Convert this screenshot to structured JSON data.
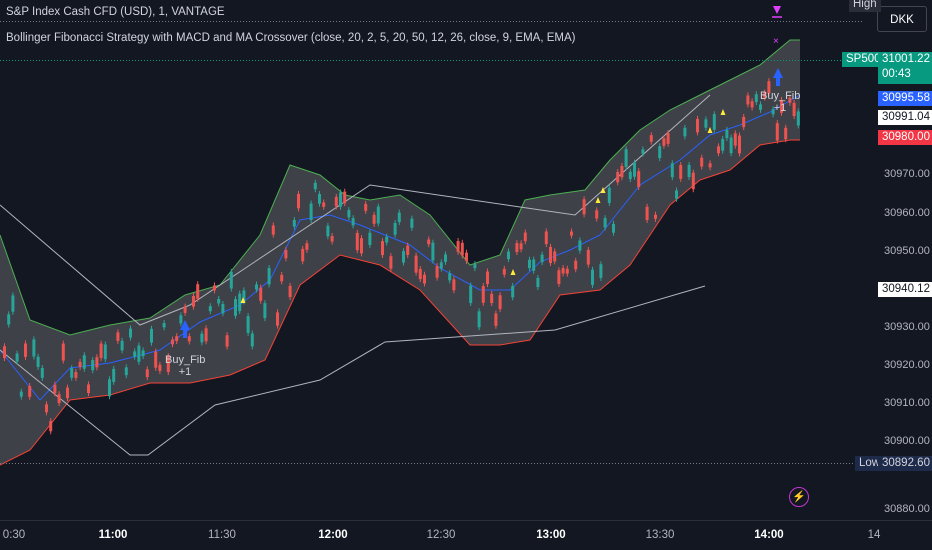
{
  "header": {
    "symbol_line": "S&P Index Cash CFD (USD), 1, VANTAGE",
    "indicator_line": "Bollinger Fibonacci Strategy with MACD and MA Crossover (close, 20, 2, 5, 20, 50, 12, 26, close, 9, EMA, EMA)"
  },
  "currency_button": "DKK",
  "price_axis": {
    "ticks": [
      "30970.00",
      "30960.00",
      "30950.00",
      "30930.00",
      "30920.00",
      "30910.00",
      "30900.00",
      "30880.00"
    ],
    "high_label": "High",
    "low_label": "Low",
    "low_value": "30892.60",
    "symbol_badge": "SP500",
    "last_price": "31001.22",
    "countdown": "00:43",
    "upper_band_value": "30995.58",
    "crosshair_value": "30991.04",
    "lower_band_value": "30980.00",
    "marker_value": "30940.12"
  },
  "time_axis": {
    "ticks": [
      {
        "label": "0:30",
        "bold": false
      },
      {
        "label": "11:00",
        "bold": true
      },
      {
        "label": "11:30",
        "bold": false
      },
      {
        "label": "12:00",
        "bold": true
      },
      {
        "label": "12:30",
        "bold": false
      },
      {
        "label": "13:00",
        "bold": true
      },
      {
        "label": "13:30",
        "bold": false
      },
      {
        "label": "14:00",
        "bold": true
      },
      {
        "label": "14",
        "bold": false
      }
    ]
  },
  "signals": [
    {
      "label": "Buy_Fib",
      "sub": "+1"
    },
    {
      "label": "Buy_Fib",
      "sub": "+1"
    }
  ],
  "colors": {
    "background": "#131722",
    "up_candle": "#26a69a",
    "down_candle": "#ef5350",
    "upper_band": "#4caf50",
    "lower_band": "#f44336",
    "basis": "#2962ff",
    "band_fill": "#5d5d63",
    "badge_green": "#089981",
    "badge_blue": "#2962ff",
    "badge_red": "#f23645",
    "marker_yellow": "#ffeb3b",
    "sell_magenta": "#e040fb"
  },
  "chart_data": {
    "type": "candlestick",
    "timeframe": "1 minute",
    "x_range": [
      "10:30",
      "14:05"
    ],
    "ylim": [
      30875,
      31013
    ],
    "last_price": 31001.22,
    "indicators": [
      "Bollinger Bands (20, 2)",
      "Fibonacci",
      "MACD (12, 26, 9)",
      "EMA crossover"
    ]
  }
}
